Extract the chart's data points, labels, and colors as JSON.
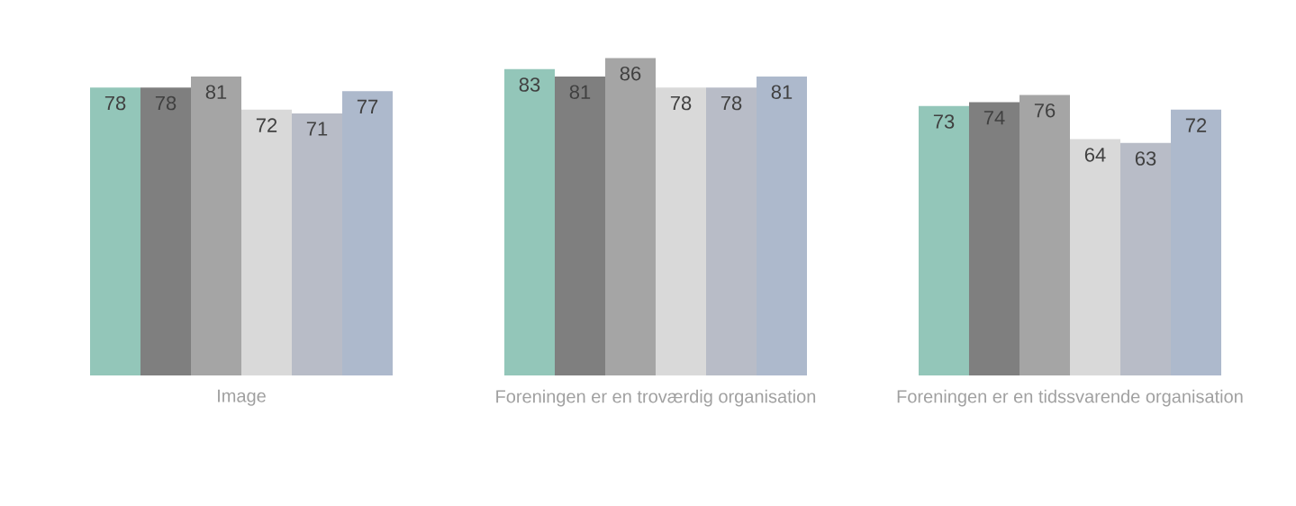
{
  "chart_data": {
    "type": "bar",
    "categories": [
      "Image",
      "Foreningen er en troværdig organisation",
      "Foreningen er en tidssvarende organisation"
    ],
    "series": [
      {
        "color": "#93c6b9",
        "values": [
          78,
          83,
          73
        ]
      },
      {
        "color": "#7f7f7f",
        "values": [
          78,
          81,
          74
        ]
      },
      {
        "color": "#a5a5a5",
        "values": [
          81,
          86,
          76
        ]
      },
      {
        "color": "#d9d9d9",
        "values": [
          72,
          78,
          64
        ]
      },
      {
        "color": "#b8bcc7",
        "values": [
          71,
          78,
          63
        ]
      },
      {
        "color": "#adb9cc",
        "values": [
          77,
          81,
          72
        ]
      }
    ],
    "data_labels": true
  }
}
